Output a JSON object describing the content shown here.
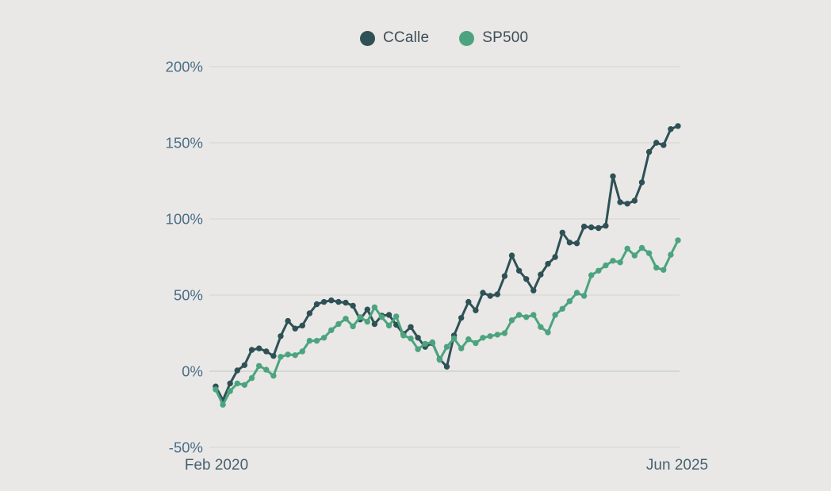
{
  "chart_data": {
    "type": "line",
    "title": "",
    "x_axis": {
      "tick_labels": [
        "Feb 2020",
        "Jun 2025"
      ],
      "unit": "month",
      "note": "monthly points, Feb 2020 through Jun 2025 (65 points per series)"
    },
    "y_axis": {
      "unit": "%",
      "ylim": [
        -50,
        200
      ],
      "ticks": [
        {
          "label": "200%",
          "value": 200
        },
        {
          "label": "150%",
          "value": 150
        },
        {
          "label": "100%",
          "value": 100
        },
        {
          "label": "50%",
          "value": 50
        },
        {
          "label": "0%",
          "value": 0
        },
        {
          "label": "-50%",
          "value": -50
        }
      ]
    },
    "grid": true,
    "legend": {
      "position": "top-center",
      "entries": [
        {
          "label": "CCalle",
          "color": "#2e5156"
        },
        {
          "label": "SP500",
          "color": "#4ca47f"
        }
      ]
    },
    "series": [
      {
        "name": "CCalle",
        "color": "#2e5156",
        "values": [
          -10,
          -19,
          -8,
          0.5,
          4,
          14,
          15,
          13,
          10,
          23,
          33,
          28,
          30,
          38,
          44,
          45.5,
          46.5,
          45.5,
          45,
          43,
          34,
          40.5,
          31,
          36.5,
          37,
          30.5,
          24.5,
          29,
          22,
          16,
          18.5,
          8,
          3,
          23.5,
          35,
          45.5,
          40,
          51.5,
          49.5,
          50.5,
          62.5,
          76,
          66,
          60.5,
          53,
          63.5,
          70.5,
          75,
          91,
          84.5,
          84,
          95,
          94.5,
          94,
          95.5,
          128,
          111,
          110,
          112,
          124,
          144,
          150,
          148.5,
          159,
          161
        ]
      },
      {
        "name": "SP500",
        "color": "#4ca47f",
        "values": [
          -12,
          -22,
          -13,
          -8,
          -9,
          -4.5,
          3.5,
          1,
          -3,
          9.5,
          11,
          10.5,
          13,
          20,
          20,
          22,
          27,
          31,
          34.5,
          29.5,
          35.5,
          32.5,
          42,
          35.5,
          30,
          36,
          23.5,
          21.5,
          14.5,
          18,
          19,
          7.5,
          16,
          21.5,
          15,
          21,
          18.5,
          22,
          23,
          24,
          25,
          33.5,
          37,
          35.5,
          37,
          29,
          25.5,
          37,
          41,
          46,
          51.5,
          49.5,
          63,
          66,
          69.5,
          72.5,
          71.5,
          80.5,
          76,
          81,
          77.5,
          68,
          66.5,
          76.5,
          86
        ]
      }
    ]
  },
  "style": {
    "background": "#e9e8e6",
    "grid_color": "#d9d8d6",
    "zero_line_color": "#c5cec8",
    "y_tick_color": "#4a6e87",
    "x_tick_color": "#46616f",
    "legend_text_color": "#3d4e58"
  }
}
